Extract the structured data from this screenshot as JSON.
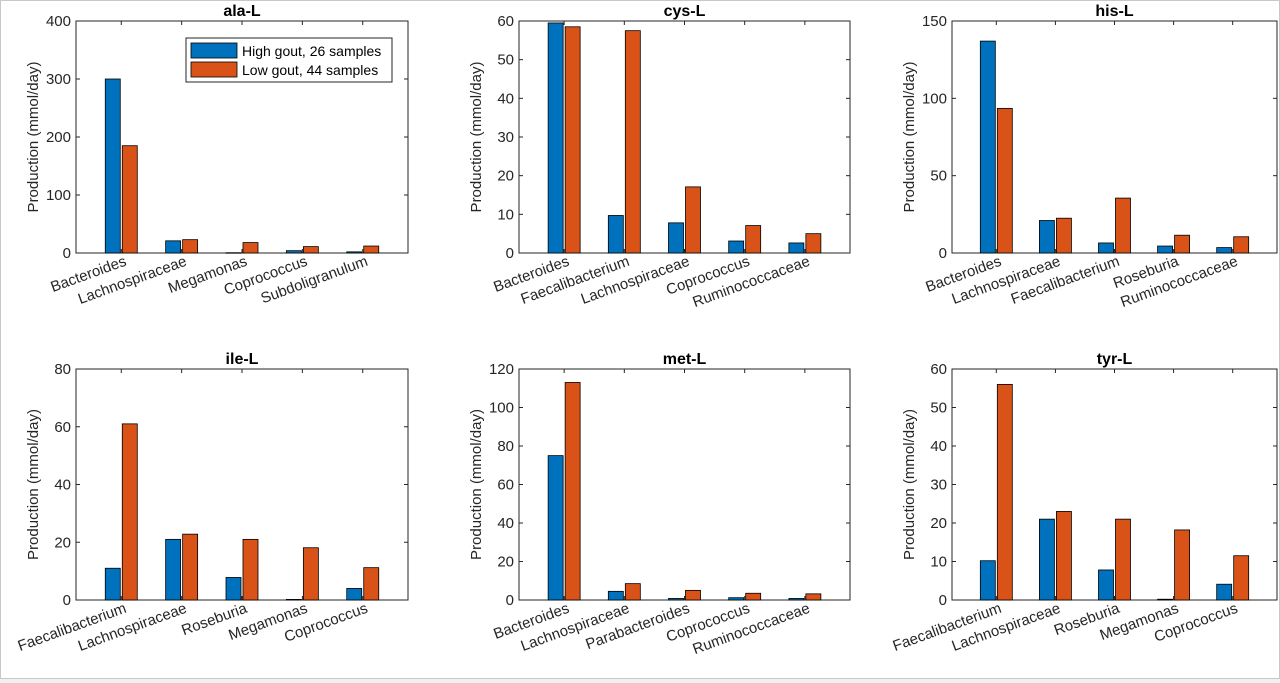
{
  "colors": {
    "high": "#0072BD",
    "low": "#D95319",
    "axis": "#262626",
    "edge": "#000000"
  },
  "legend": {
    "high_label": "High gout, 26 samples",
    "low_label": "Low gout, 44 samples",
    "placement": "top-right of first panel"
  },
  "chart_data": [
    {
      "type": "bar",
      "title": "ala-L",
      "ylabel": "Production (mmol/day)",
      "ylim": [
        0,
        400
      ],
      "yticks": [
        0,
        100,
        200,
        300,
        400
      ],
      "categories": [
        "Bacteroides",
        "Lachnospiraceae",
        "Megamonas",
        "Coprococcus",
        "Subdoligranulum"
      ],
      "series": [
        {
          "name": "High gout, 26 samples",
          "values": [
            300,
            21,
            0.5,
            4,
            2
          ]
        },
        {
          "name": "Low gout, 44 samples",
          "values": [
            185,
            23,
            18,
            11,
            12
          ]
        }
      ]
    },
    {
      "type": "bar",
      "title": "cys-L",
      "ylabel": "Production (mmol/day)",
      "ylim": [
        0,
        60
      ],
      "yticks": [
        0,
        10,
        20,
        30,
        40,
        50,
        60
      ],
      "categories": [
        "Bacteroides",
        "Faecalibacterium",
        "Lachnospiraceae",
        "Coprococcus",
        "Ruminococcaceae"
      ],
      "series": [
        {
          "name": "High gout, 26 samples",
          "values": [
            59.5,
            9.7,
            7.8,
            3.1,
            2.6
          ]
        },
        {
          "name": "Low gout, 44 samples",
          "values": [
            58.5,
            57.5,
            17.1,
            7.1,
            5
          ]
        }
      ]
    },
    {
      "type": "bar",
      "title": "his-L",
      "ylabel": "Production (mmol/day)",
      "ylim": [
        0,
        150
      ],
      "yticks": [
        0,
        50,
        100,
        150
      ],
      "categories": [
        "Bacteroides",
        "Lachnospiraceae",
        "Faecalibacterium",
        "Roseburia",
        "Ruminococcaceae"
      ],
      "series": [
        {
          "name": "High gout, 26 samples",
          "values": [
            137,
            21,
            6.5,
            4.5,
            3.5
          ]
        },
        {
          "name": "Low gout, 44 samples",
          "values": [
            93.5,
            22.5,
            35.5,
            11.5,
            10.5
          ]
        }
      ]
    },
    {
      "type": "bar",
      "title": "ile-L",
      "ylabel": "Production (mmol/day)",
      "ylim": [
        0,
        80
      ],
      "yticks": [
        0,
        20,
        40,
        60,
        80
      ],
      "categories": [
        "Faecalibacterium",
        "Lachnospiraceae",
        "Roseburia",
        "Megamonas",
        "Coprococcus"
      ],
      "series": [
        {
          "name": "High gout, 26 samples",
          "values": [
            11,
            21,
            7.8,
            0.2,
            4
          ]
        },
        {
          "name": "Low gout, 44 samples",
          "values": [
            61,
            22.8,
            21,
            18.1,
            11.2
          ]
        }
      ]
    },
    {
      "type": "bar",
      "title": "met-L",
      "ylabel": "Production (mmol/day)",
      "ylim": [
        0,
        120
      ],
      "yticks": [
        0,
        20,
        40,
        60,
        80,
        100,
        120
      ],
      "categories": [
        "Bacteroides",
        "Lachnospiraceae",
        "Parabacteroides",
        "Coprococcus",
        "Ruminococcaceae"
      ],
      "series": [
        {
          "name": "High gout, 26 samples",
          "values": [
            75,
            4.5,
            0.8,
            1.2,
            0.8
          ]
        },
        {
          "name": "Low gout, 44 samples",
          "values": [
            113,
            8.5,
            5,
            3.5,
            3.2
          ]
        }
      ]
    },
    {
      "type": "bar",
      "title": "tyr-L",
      "ylabel": "Production (mmol/day)",
      "ylim": [
        0,
        60
      ],
      "yticks": [
        0,
        10,
        20,
        30,
        40,
        50,
        60
      ],
      "categories": [
        "Faecalibacterium",
        "Lachnospiraceae",
        "Roseburia",
        "Megamonas",
        "Coprococcus"
      ],
      "series": [
        {
          "name": "High gout, 26 samples",
          "values": [
            10.2,
            21,
            7.8,
            0.2,
            4.1
          ]
        },
        {
          "name": "Low gout, 44 samples",
          "values": [
            56,
            23,
            21,
            18.2,
            11.5
          ]
        }
      ]
    }
  ]
}
